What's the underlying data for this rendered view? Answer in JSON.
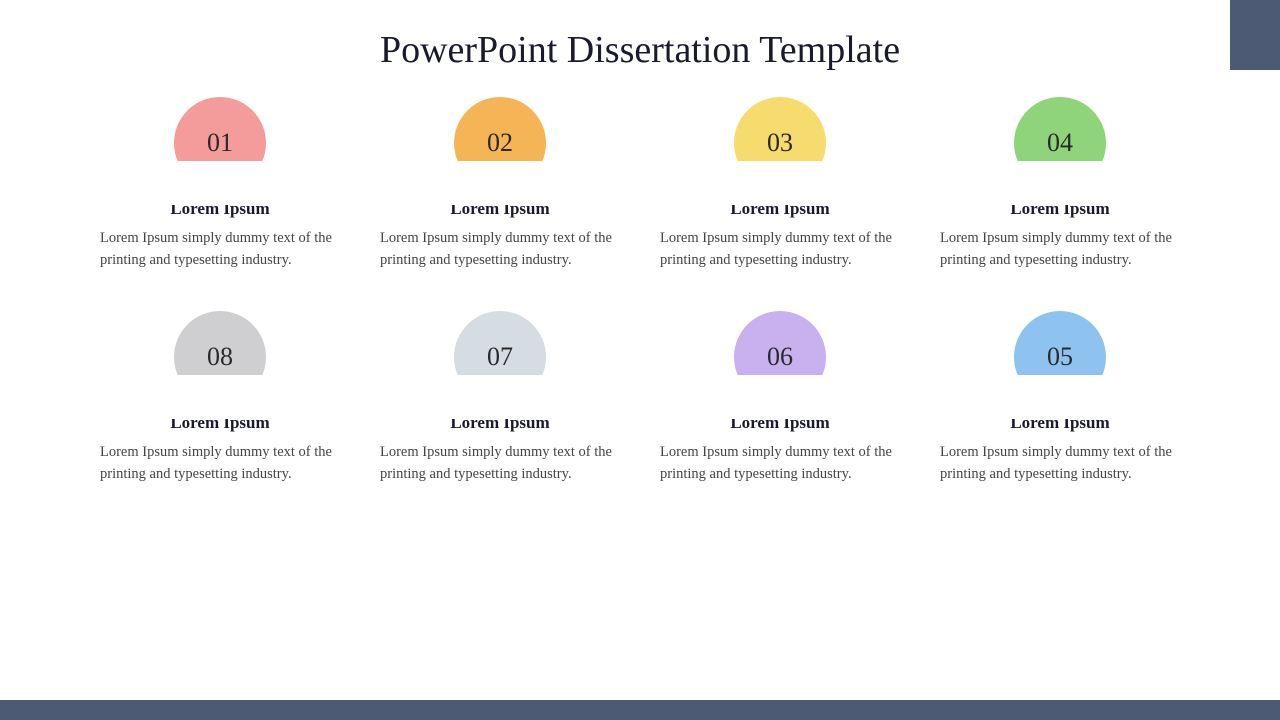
{
  "title": "PowerPoint Dissertation Template",
  "accent_color": "#4c5a73",
  "bottom_bar_color": "#4c5a73",
  "background_color": "#ffffff",
  "title_color": "#1a1a2e",
  "subtitle_color": "#1a1a2e",
  "desc_color": "#444444",
  "items": [
    {
      "number": "01",
      "circle_color": "#f49b9b",
      "line_color": "#f49b9b",
      "subtitle": "Lorem Ipsum",
      "desc": "Lorem Ipsum simply dummy text of the printing and typesetting industry."
    },
    {
      "number": "02",
      "circle_color": "#f5b556",
      "line_color": "#f5b556",
      "subtitle": "Lorem Ipsum",
      "desc": "Lorem Ipsum simply dummy text of the printing and typesetting industry."
    },
    {
      "number": "03",
      "circle_color": "#f6db6f",
      "line_color": "#f6db6f",
      "subtitle": "Lorem Ipsum",
      "desc": "Lorem Ipsum simply dummy text of the printing and typesetting industry."
    },
    {
      "number": "04",
      "circle_color": "#8fd47a",
      "line_color": "#8fd47a",
      "subtitle": "Lorem Ipsum",
      "desc": "Lorem Ipsum simply dummy text of the printing and typesetting industry."
    },
    {
      "number": "08",
      "circle_color": "#cfcfd2",
      "line_color": "#cfcfd2",
      "subtitle": "Lorem Ipsum",
      "desc": "Lorem Ipsum simply dummy text of the printing and typesetting industry."
    },
    {
      "number": "07",
      "circle_color": "#d5dde2",
      "line_color": "#d5dde2",
      "subtitle": "Lorem Ipsum",
      "desc": "Lorem Ipsum simply dummy text of the printing and typesetting industry."
    },
    {
      "number": "06",
      "circle_color": "#c9b0ee",
      "line_color": "#c9b0ee",
      "subtitle": "Lorem Ipsum",
      "desc": "Lorem Ipsum simply dummy text of the printing and typesetting industry."
    },
    {
      "number": "05",
      "circle_color": "#8fc3ef",
      "line_color": "#8fc3ef",
      "subtitle": "Lorem Ipsum",
      "desc": "Lorem Ipsum simply dummy text of the printing and typesetting industry."
    }
  ]
}
